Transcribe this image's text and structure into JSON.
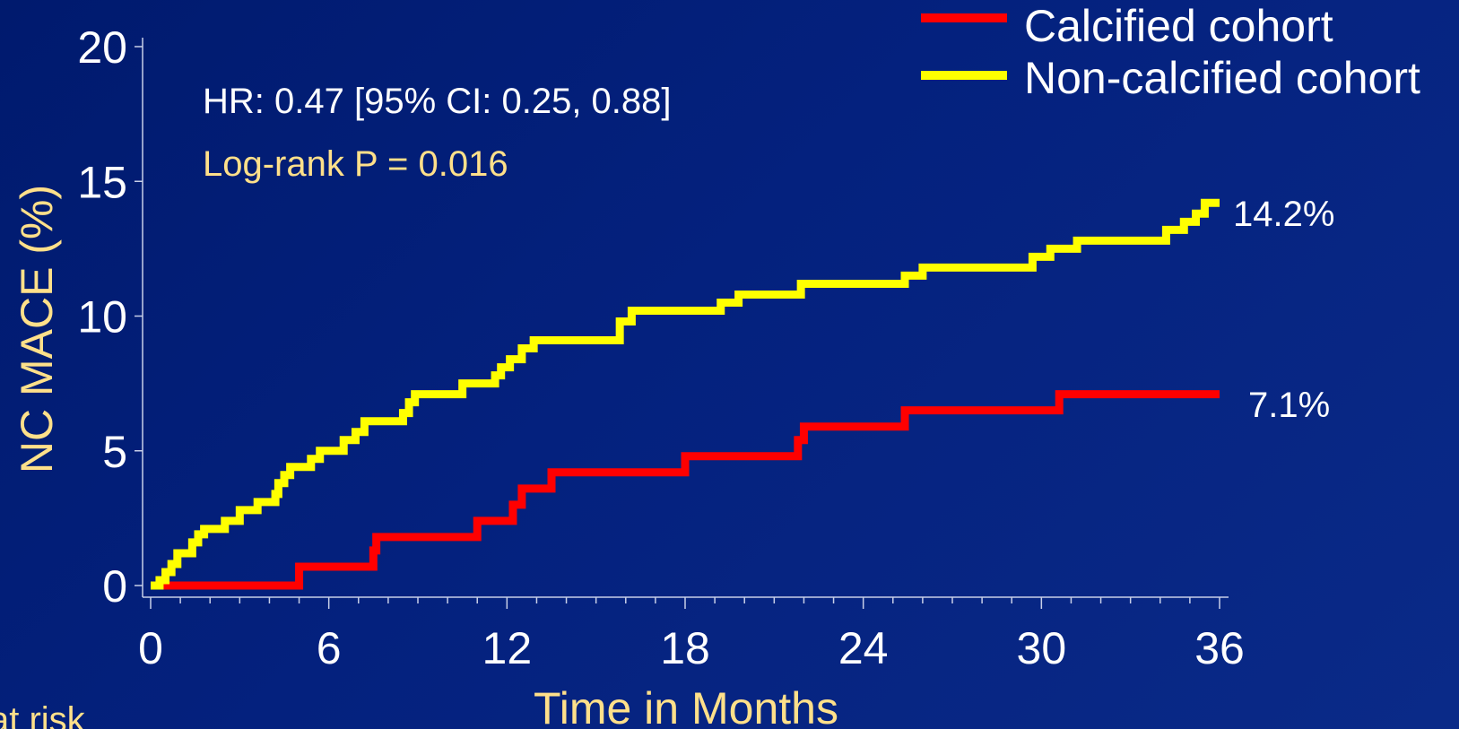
{
  "chart_data": {
    "type": "line",
    "xlabel": "Time in Months",
    "ylabel": "NC MACE (%)",
    "xlim": [
      0,
      36
    ],
    "ylim": [
      0,
      20
    ],
    "xticks": [
      0,
      6,
      12,
      18,
      24,
      30,
      36
    ],
    "yticks": [
      0,
      5,
      10,
      15,
      20
    ],
    "grid": false,
    "legend_position": "top-right",
    "annotations": {
      "hr": "HR: 0.47 [95% CI: 0.25, 0.88]",
      "logrank": "Log-rank P = 0.016",
      "label_noncalcified_end": "14.2%",
      "label_calcified_end": "7.1%",
      "at_risk": "at risk"
    },
    "series": [
      {
        "name": "Calcified cohort",
        "color": "#ff0000",
        "x": [
          0.3,
          5.0,
          7.5,
          7.6,
          11.0,
          12.2,
          12.5,
          13.5,
          18.0,
          21.8,
          22.0,
          25.4,
          30.6,
          36.0
        ],
        "y": [
          0.0,
          0.7,
          1.3,
          1.8,
          2.4,
          3.0,
          3.6,
          4.2,
          4.8,
          5.4,
          5.9,
          6.5,
          7.1,
          7.1
        ]
      },
      {
        "name": "Non-calcified cohort",
        "color": "#ffff00",
        "x": [
          0.0,
          0.3,
          0.5,
          0.7,
          0.9,
          1.4,
          1.6,
          1.8,
          2.5,
          3.0,
          3.6,
          4.2,
          4.3,
          4.5,
          4.7,
          5.4,
          5.7,
          6.5,
          6.9,
          7.2,
          8.5,
          8.7,
          8.9,
          10.5,
          11.6,
          11.8,
          12.1,
          12.5,
          12.9,
          15.8,
          16.2,
          19.2,
          19.8,
          21.9,
          25.4,
          26.0,
          29.7,
          30.3,
          31.2,
          34.2,
          34.8,
          35.2,
          35.5,
          36.0
        ],
        "y": [
          0.0,
          0.2,
          0.5,
          0.8,
          1.2,
          1.6,
          1.9,
          2.1,
          2.4,
          2.8,
          3.1,
          3.4,
          3.8,
          4.1,
          4.4,
          4.7,
          5.0,
          5.4,
          5.7,
          6.1,
          6.4,
          6.8,
          7.1,
          7.5,
          7.8,
          8.1,
          8.4,
          8.8,
          9.1,
          9.8,
          10.2,
          10.5,
          10.8,
          11.2,
          11.5,
          11.8,
          12.2,
          12.5,
          12.8,
          13.2,
          13.5,
          13.8,
          14.2,
          14.2
        ]
      }
    ]
  }
}
